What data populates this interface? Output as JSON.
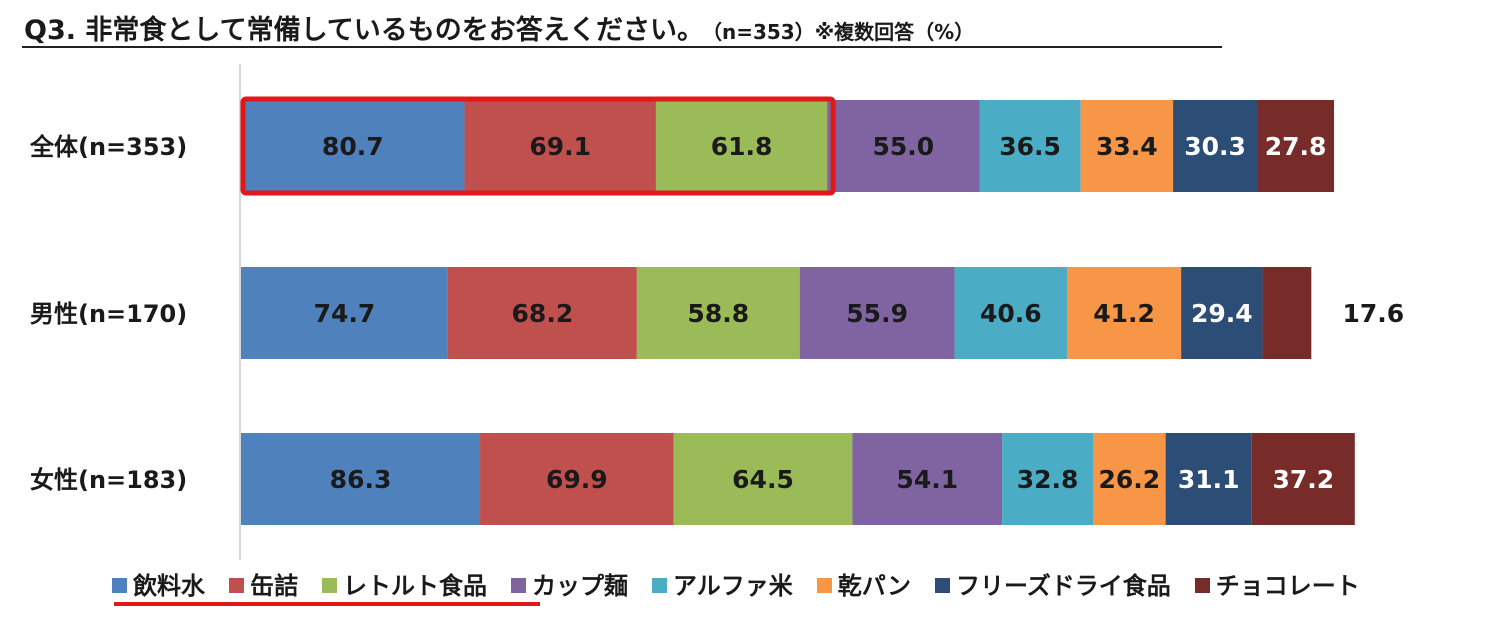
{
  "header": {
    "title": "Q3. 非常食として常備しているものをお答えください。",
    "subtitle": "（n=353）※複数回答（%）"
  },
  "colors": {
    "series": [
      "#4f81bd",
      "#c0504d",
      "#9bbb59",
      "#8064a2",
      "#4bacc6",
      "#f79646",
      "#2c4d75",
      "#772c2a"
    ],
    "highlight": "#e01818",
    "label_dark": "#1a1a1a",
    "label_light": "#ffffff"
  },
  "chart_data": {
    "type": "bar",
    "orientation": "horizontal",
    "stacked": true,
    "categories": [
      "全体(n=353)",
      "男性(n=170)",
      "女性(n=183)"
    ],
    "series": [
      {
        "name": "飲料水",
        "values": [
          80.7,
          74.7,
          86.3
        ]
      },
      {
        "name": "缶詰",
        "values": [
          69.1,
          68.2,
          69.9
        ]
      },
      {
        "name": "レトルト食品",
        "values": [
          61.8,
          58.8,
          64.5
        ]
      },
      {
        "name": "カップ麺",
        "values": [
          55.0,
          55.9,
          54.1
        ]
      },
      {
        "name": "アルファ米",
        "values": [
          36.5,
          40.6,
          32.8
        ]
      },
      {
        "name": "乾パン",
        "values": [
          33.4,
          41.2,
          26.2
        ]
      },
      {
        "name": "フリーズドライ食品",
        "values": [
          30.3,
          29.4,
          31.1
        ]
      },
      {
        "name": "チョコレート",
        "values": [
          27.8,
          17.6,
          37.2
        ]
      }
    ],
    "value_labels": [
      [
        "80.7",
        "69.1",
        "61.8",
        "55.0",
        "36.5",
        "33.4",
        "30.3",
        "27.8"
      ],
      [
        "74.7",
        "68.2",
        "58.8",
        "55.9",
        "40.6",
        "41.2",
        "29.4",
        "17.6"
      ],
      [
        "86.3",
        "69.9",
        "64.5",
        "54.1",
        "32.8",
        "26.2",
        "31.1",
        "37.2"
      ]
    ],
    "label_dark_series": [
      0,
      1,
      2,
      3,
      4,
      5
    ],
    "highlight": {
      "category_index": 0,
      "series_indices": [
        0,
        1,
        2
      ]
    },
    "legend_highlight_series": [
      0,
      1,
      2
    ],
    "legend_position": "bottom",
    "grid": false
  }
}
